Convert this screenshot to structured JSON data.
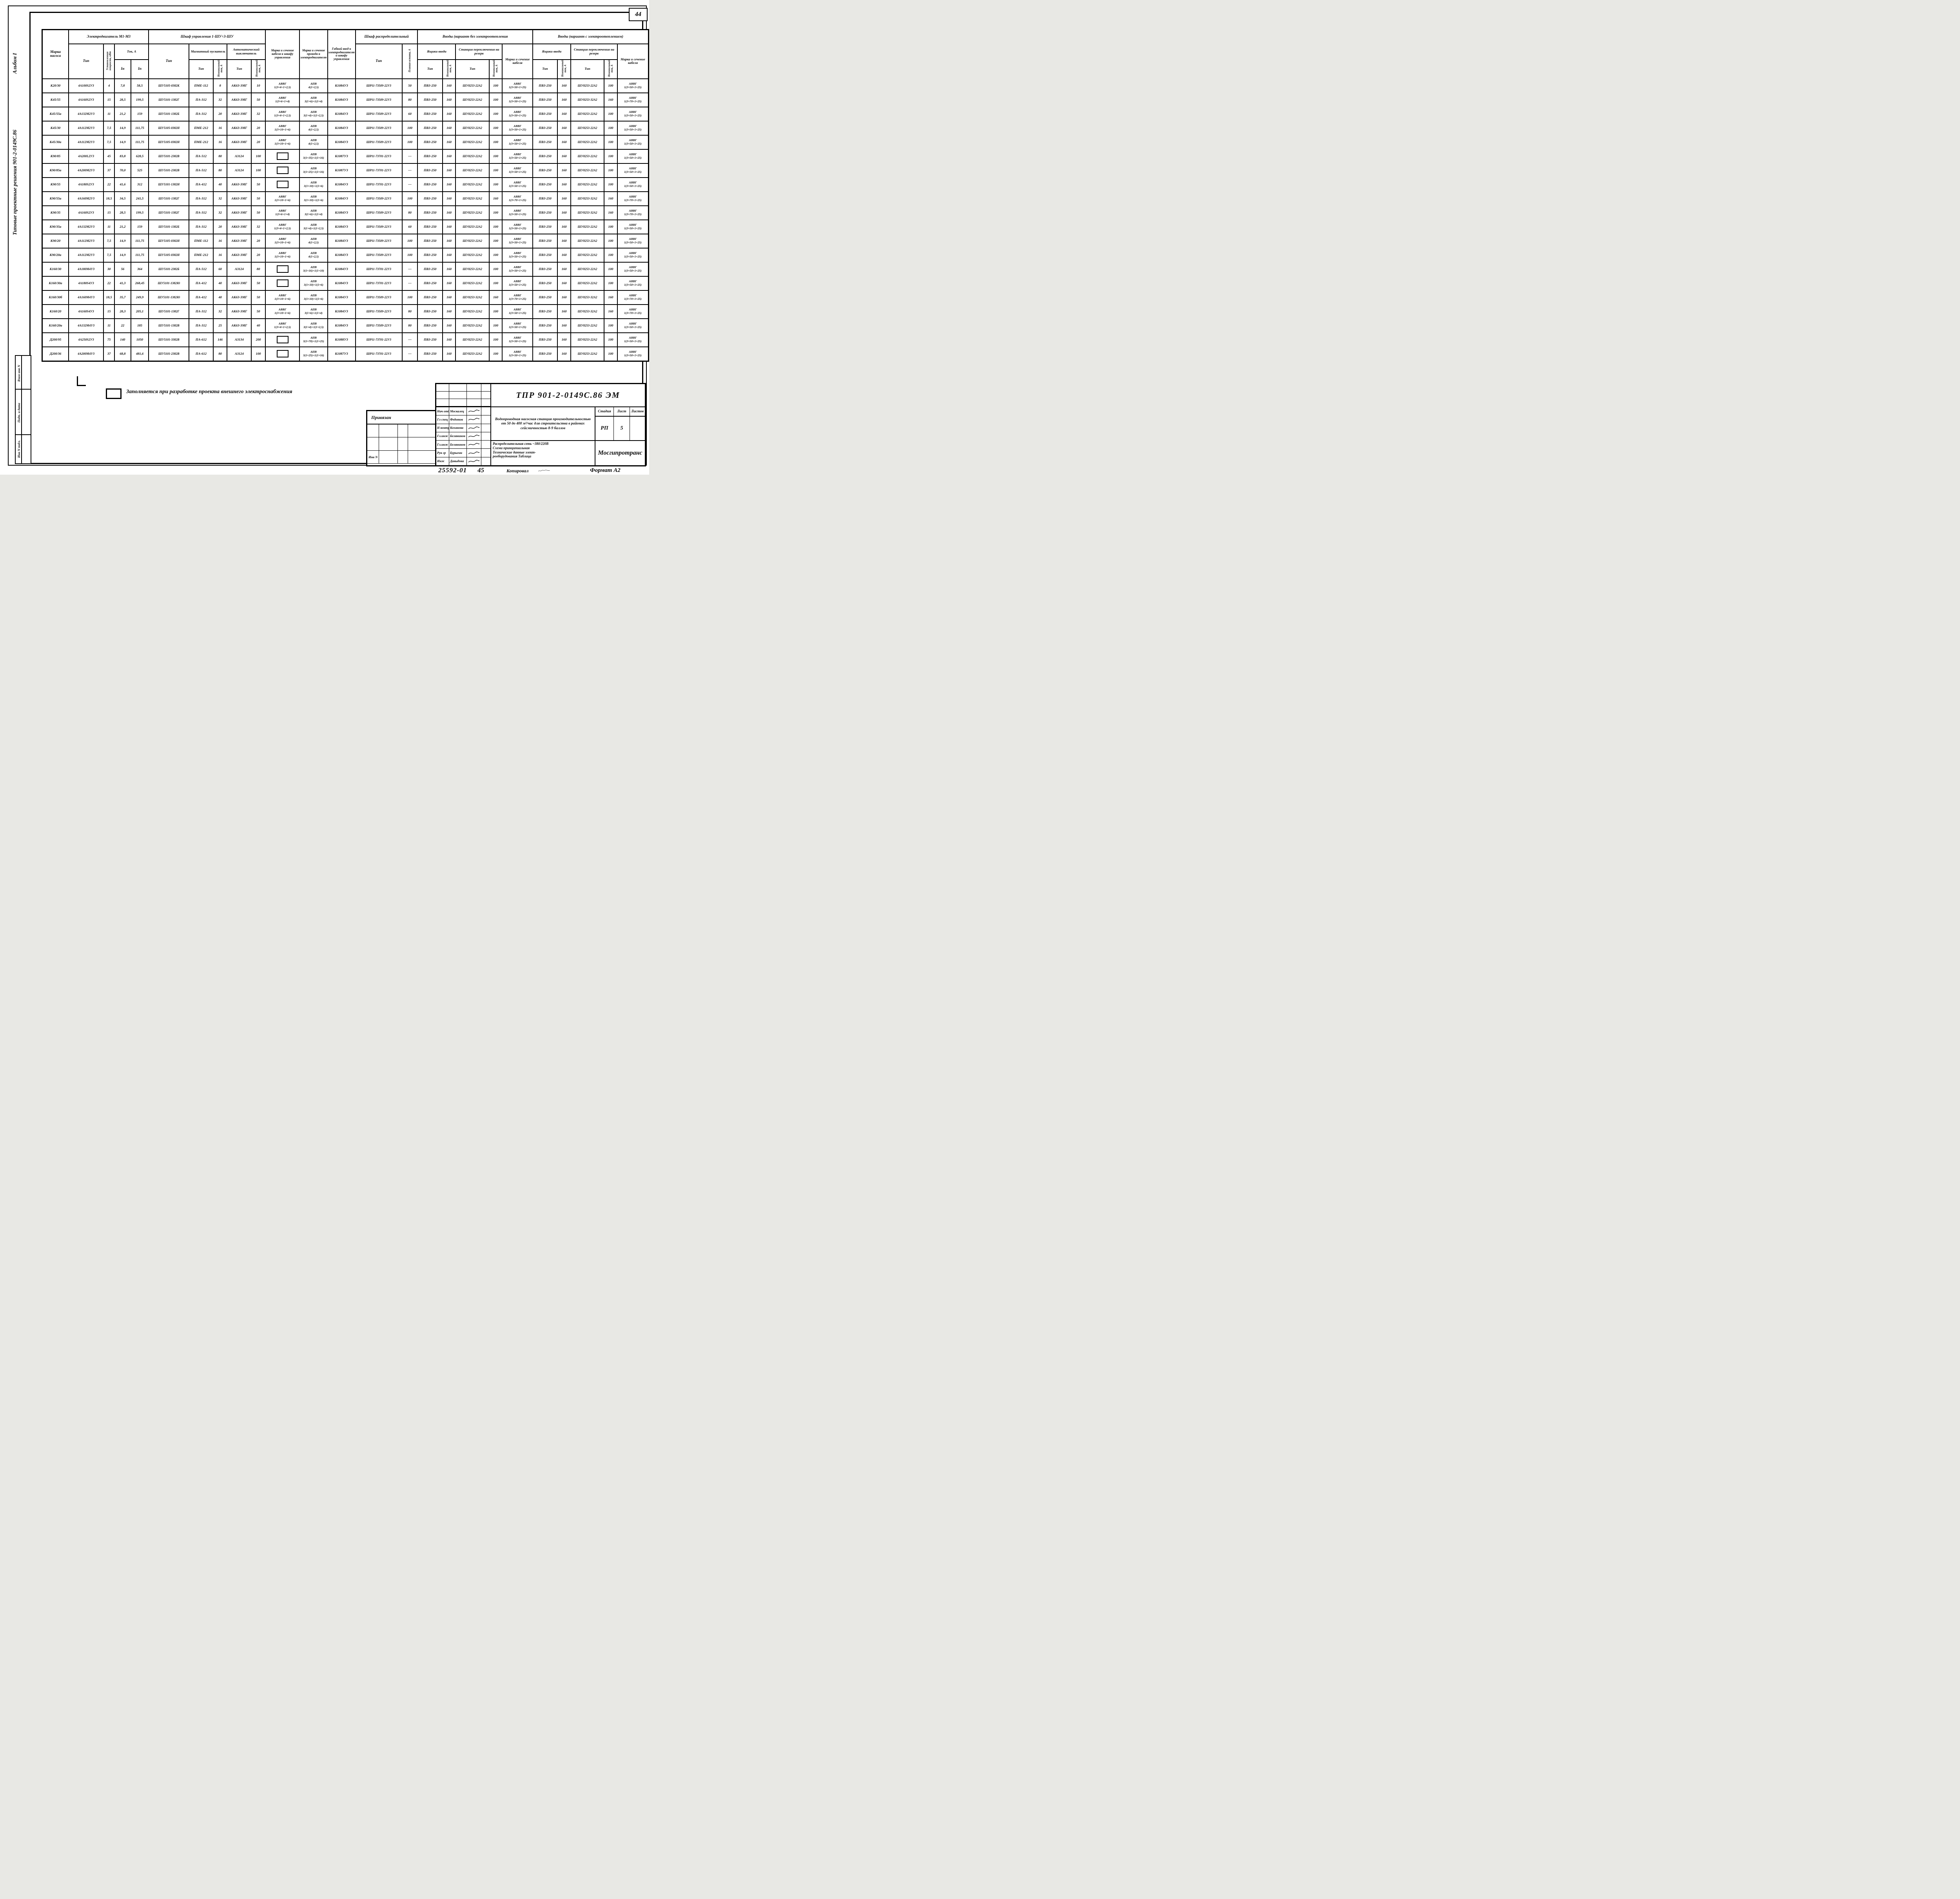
{
  "page": {
    "sheet_number": "44",
    "left_margin": {
      "vertical_title": "Типовые  проектные  решения  901-2-0149С.86",
      "album": "Альбом I",
      "stamp_cells": [
        "Взам инв N",
        "Подп. и дата",
        "Инв N подл."
      ]
    },
    "footer": {
      "order_no": "25592-01",
      "footer_sheet": "45",
      "copied_label": "Копировал",
      "format": "Формат А2"
    }
  },
  "note": {
    "text": "Заполняется при разработке проекта внешнего электроснабжения"
  },
  "table": {
    "header": {
      "pump_mark": "Марка\nнасоса",
      "motor_group": "Электродвигатель  М1-М3",
      "motor_type": "Тип",
      "motor_power": "Установленная мощность, кВт",
      "current_group": "Ток, А",
      "i_nom": "Iн",
      "i_start": "Iп",
      "control_group": "Шкаф  управления   1-ШУ÷3-ШУ",
      "control_type": "Тип",
      "starter_group": "Магнитный пускатель",
      "breaker_group": "Автоматический выключатель",
      "type_label": "Тип",
      "nom_current": "Номинальный ток, А",
      "cable_to_control": "Марка и сечение кабеля к шкафу управления",
      "wire_to_motor": "Марка и сечение провода к электродвигателю",
      "flex_lead": "Гибкий ввод к электродвигателю и шкафу управления",
      "distribution_group": "Шкаф распределительный",
      "distribution_type": "Тип",
      "fuse": "Плавкая вставка, А",
      "inputs_no_heating": "Вводы (вариант без электроотопления",
      "inputs_heating": "Вводы (вариант с электроотоплением)",
      "input_boxes": "Ящики ввода",
      "switch_station": "Станция переключения на резерв",
      "cable_mark": "Марка и сечение кабеля"
    },
    "rows": [
      [
        "К20/30",
        "4А100S2У3",
        "4",
        "7,8",
        "58,5",
        "ШУ5105-0382К",
        "ПМЕ-112",
        "8",
        "АК63-3МГ",
        "10",
        "АВВГ\n1(3×4+1×2,5)",
        "АПВ\n4(1×2,5)",
        "К1084У3",
        "ШР11-73509-22У3",
        "50",
        "ПВ3-250",
        "160",
        "ШУ8253-22А2",
        "100",
        "АВВГ\n1(3×50+1×25)",
        "ПВ3-250",
        "160",
        "ШУ8253-22А2",
        "100",
        "АВВГ\n1(3×50+1×25)"
      ],
      [
        "К45/55",
        "4А160S2У3",
        "15",
        "28,5",
        "199,5",
        "ШУ5101-1382Г",
        "ПА-312",
        "32",
        "АК63-3МГ",
        "50",
        "АВВГ\n1(3×6+1×4)",
        "АПВ\n3(1×6)+1(1×4)",
        "К1084У3",
        "ШР11-73509-22У3",
        "80",
        "ПВ3-250",
        "160",
        "ШУ8253-22А2",
        "100",
        "АВВГ\n1(3×50+1×25)",
        "ПВ3-250",
        "160",
        "ШУ8253-32А2",
        "160",
        "АВВГ\n1(3×70+1×25)"
      ],
      [
        "К45/55а",
        "4А132М2У3",
        "11",
        "21,2",
        "159",
        "ШУ5101-1382Б",
        "ПА-312",
        "20",
        "АК63-3МГ",
        "32",
        "АВВГ\n1(3×4+1×2,5)",
        "АПВ\n3(1×4)+1(1×2,5)",
        "К1084У3",
        "ШР11-73509-22У3",
        "60",
        "ПВ3-250",
        "160",
        "ШУ8253-22А2",
        "100",
        "АВВГ\n1(3×50+1×25)",
        "ПВ3-250",
        "160",
        "ШУ8253-22А2",
        "100",
        "АВВГ\n1(3×50+1×25)"
      ],
      [
        "К45/30",
        "4А112М2У3",
        "7,5",
        "14,9",
        "111,75",
        "ШУ5105-0382Н",
        "ПМЕ-212",
        "16",
        "АК63-3МГ",
        "20",
        "АВВГ\n1(3×10+1×6)",
        "АПВ\n4(1×2,5)",
        "К1084У3",
        "ШР11-73509-22У3",
        "100",
        "ПВ3-250",
        "160",
        "ШУ8253-22А2",
        "100",
        "АВВГ\n1(3×50+1×25)",
        "ПВ3-250",
        "160",
        "ШУ8253-22А2",
        "100",
        "АВВГ\n1(3×50+1×25)"
      ],
      [
        "К45/30а",
        "4А112М2У3",
        "7,5",
        "14,9",
        "111,75",
        "ШУ5105-0382Н",
        "ПМЕ-212",
        "16",
        "АК63-3МГ",
        "20",
        "АВВГ\n1(3×10+1×6)",
        "АПВ\n4(1×2,5)",
        "К1084У3",
        "ШР11-73509-22У3",
        "100",
        "ПВ3-250",
        "160",
        "ШУ8253-22А2",
        "100",
        "АВВГ\n1(3×50+1×25)",
        "ПВ3-250",
        "160",
        "ШУ8253-22А2",
        "100",
        "АВВГ\n1(3×50+1×25)"
      ],
      [
        "К90/85",
        "4А200L2У3",
        "45",
        "83,8",
        "628,5",
        "ШУ5101-2382В",
        "ПА-512",
        "80",
        "А3124",
        "100",
        "▭",
        "АПВ\n3(1×35)+1(1×16)",
        "К1087У3",
        "ШР11-73701-22У3",
        "—",
        "ПВ3-250",
        "160",
        "ШУ8253-22А2",
        "100",
        "АВВГ\n1(3×50+1×25)",
        "ПВ3-250",
        "160",
        "ШУ8253-22А2",
        "100",
        "АВВГ\n1(3×50+1×25)"
      ],
      [
        "К90/85а",
        "4А200М2У3",
        "37",
        "70,0",
        "525",
        "ШУ5101-2382В",
        "ПА-512",
        "80",
        "А3124",
        "100",
        "▭",
        "АПВ\n3(1×25)+1(1×16)",
        "К1087У3",
        "ШР11-73701-22У3",
        "—",
        "ПВ3-250",
        "160",
        "ШУ8253-22А2",
        "100",
        "АВВГ\n1(3×50+1×25)",
        "ПВ3-250",
        "160",
        "ШУ8253-22А2",
        "100",
        "АВВГ\n1(3×50+1×25)"
      ],
      [
        "К90/55",
        "4А180S2У3",
        "22",
        "41,6",
        "312",
        "ШУ5101-1382Н",
        "ПА-412",
        "40",
        "АК63-3МГ",
        "50",
        "▭",
        "АПВ\n3(1×10)+1(1×6)",
        "К1084У3",
        "ШР11-73701-22У3",
        "—",
        "ПВ3-250",
        "160",
        "ШУ8253-22А2",
        "100",
        "АВВГ\n1(3×50+1×25)",
        "ПВ3-250",
        "160",
        "ШУ8253-22А2",
        "100",
        "АВВГ\n1(3×50+1×25)"
      ],
      [
        "К90/55а",
        "4А160М2У3",
        "18,5",
        "34,5",
        "241,5",
        "ШУ5101-1382Г",
        "ПА-312",
        "32",
        "АК63-3МГ",
        "50",
        "АВВГ\n1(3×10+1×6)",
        "АПВ\n3(1×10)+1(1×6)",
        "К1084У3",
        "ШР11-73509-22У3",
        "100",
        "ПВ3-250",
        "160",
        "ШУ8253-32А2",
        "160",
        "АВВГ\n1(3×70+1×25)",
        "ПВ3-250",
        "160",
        "ШУ8253-32А2",
        "160",
        "АВВГ\n1(3×70+1×25)"
      ],
      [
        "К90/35",
        "4А160S2У3",
        "15",
        "28,5",
        "199,5",
        "ШУ5101-1382Г",
        "ПА-312",
        "32",
        "АК63-3МГ",
        "50",
        "АВВГ\n1(3×6+1×4)",
        "АПВ\n3(1×6)+1(1×4)",
        "К1084У3",
        "ШР11-73509-22У3",
        "80",
        "ПВ3-250",
        "160",
        "ШУ8253-22А2",
        "100",
        "АВВГ\n1(3×50+1×25)",
        "ПВ3-250",
        "160",
        "ШУ8253-32А2",
        "160",
        "АВВГ\n1(3×70+1×25)"
      ],
      [
        "К90/35а",
        "4А132М2У3",
        "11",
        "21,2",
        "159",
        "ШУ5101-1382Б",
        "ПА-312",
        "20",
        "АК63-3МГ",
        "32",
        "АВВГ\n1(3×4+1×2,5)",
        "АПВ\n3(1×4)+1(1×2,5)",
        "К1084У3",
        "ШР11-73509-22У3",
        "60",
        "ПВ3-250",
        "160",
        "ШУ8253-22А2",
        "100",
        "АВВГ\n1(3×50+1×25)",
        "ПВ3-250",
        "160",
        "ШУ8253-22А2",
        "100",
        "АВВГ\n1(3×50+1×25)"
      ],
      [
        "К90/20",
        "4А112М2У3",
        "7,5",
        "14,9",
        "111,75",
        "ШУ5105-0382Н",
        "ПМЕ-112",
        "16",
        "АК63-3МГ",
        "20",
        "АВВГ\n1(3×10+1×6)",
        "АПВ\n4(1×2,5)",
        "К1084У3",
        "ШР11-73509-22У3",
        "100",
        "ПВ3-250",
        "160",
        "ШУ8253-22А2",
        "100",
        "АВВГ\n1(3×50+1×25)",
        "ПВ3-250",
        "160",
        "ШУ8253-22А2",
        "100",
        "АВВГ\n1(3×50+1×25)"
      ],
      [
        "К90/20а",
        "4А112М2У3",
        "7,5",
        "14,9",
        "111,75",
        "ШУ5105-0382Н",
        "ПМЕ-212",
        "16",
        "АК63-3МГ",
        "20",
        "АВВГ\n1(3×10+1×6)",
        "АПВ\n4(1×2,5)",
        "К1084У3",
        "ШР11-73509-22У3",
        "100",
        "ПВ3-250",
        "160",
        "ШУ8253-22А2",
        "100",
        "АВВГ\n1(3×50+1×25)",
        "ПВ3-250",
        "160",
        "ШУ8253-22А2",
        "100",
        "АВВГ\n1(3×50+1×25)"
      ],
      [
        "К160/30",
        "4А180М4У3",
        "30",
        "56",
        "364",
        "ШУ5101-2382Б",
        "ПА-512",
        "60",
        "А3124",
        "80",
        "▭",
        "АПВ\n3(1×16)+1(1×10)",
        "К1084У3",
        "ШР11-73701-22У3",
        "—",
        "ПВ3-250",
        "160",
        "ШУ8253-22А2",
        "100",
        "АВВГ\n1(3×50+1×25)",
        "ПВ3-250",
        "160",
        "ШУ8253-22А2",
        "100",
        "АВВГ\n1(3×50+1×25)"
      ],
      [
        "К160/30а",
        "4А180S4У3",
        "22",
        "41,3",
        "268,45",
        "ШУ5101-1382Ю",
        "ПА-412",
        "40",
        "АК63-3МГ",
        "50",
        "▭",
        "АПВ\n3(1×10)+1(1×6)",
        "К1084У3",
        "ШР11-73701-22У3",
        "—",
        "ПВ3-250",
        "160",
        "ШУ8253-22А2",
        "100",
        "АВВГ\n1(3×50+1×25)",
        "ПВ3-250",
        "160",
        "ШУ8253-22А2",
        "100",
        "АВВГ\n1(3×50+1×25)"
      ],
      [
        "К160/30б",
        "4А160М4У3",
        "18,5",
        "35,7",
        "249,9",
        "ШУ5101-1382Ю",
        "ПА-412",
        "40",
        "АК63-3МГ",
        "50",
        "АВВГ\n1(3×10+1×6)",
        "АПВ\n3(1×10)+1(1×6)",
        "К1084У3",
        "ШР11-73509-22У3",
        "100",
        "ПВ3-250",
        "160",
        "ШУ8253-32А2",
        "160",
        "АВВГ\n1(3×70+1×25)",
        "ПВ3-250",
        "160",
        "ШУ8253-32А2",
        "160",
        "АВВГ\n1(3×70+1×25)"
      ],
      [
        "К160/20",
        "4А160S4У3",
        "15",
        "28,3",
        "205,1",
        "ШУ5101-1382Г",
        "ПА-312",
        "32",
        "АК63-3МГ",
        "50",
        "АВВГ\n1(3×10+1×6)",
        "АПВ\n3(1×6)+1(1×4)",
        "К1084У3",
        "ШР11-73509-22У3",
        "80",
        "ПВ3-250",
        "160",
        "ШУ8253-22А2",
        "100",
        "АВВГ\n1(3×50+1×25)",
        "ПВ3-250",
        "160",
        "ШУ8253-32А2",
        "160",
        "АВВГ\n1(3×70+1×25)"
      ],
      [
        "К160/20а",
        "4А132М4У3",
        "11",
        "22",
        "185",
        "ШУ5101-1382В",
        "ПА-312",
        "25",
        "АК63-3МГ",
        "40",
        "АВВГ\n1(3×4+1×2,5)",
        "АПВ\n3(1×4)+1(1×2,5)",
        "К1084У3",
        "ШР11-73509-22У3",
        "80",
        "ПВ3-250",
        "160",
        "ШУ8253-22А2",
        "100",
        "АВВГ\n1(3×50+1×25)",
        "ПВ3-250",
        "160",
        "ШУ8253-22А2",
        "100",
        "АВВГ\n1(3×50+1×25)"
      ],
      [
        "Д200/95",
        "4А250S2У3",
        "75",
        "140",
        "1050",
        "ШУ5101-3382В",
        "ПА-612",
        "146",
        "А3134",
        "200",
        "▭",
        "АПВ\n3(1×70)+1(1×25)",
        "К1088У3",
        "ШР11-73701-22У3",
        "—",
        "ПВ3-250",
        "160",
        "ШУ8253-22А2",
        "100",
        "АВВГ\n1(3×50+1×25)",
        "ПВ3-250",
        "160",
        "ШУ8253-22А2",
        "100",
        "АВВГ\n1(3×50+1×25)"
      ],
      [
        "Д200/36",
        "4А200М4У3",
        "37",
        "68,8",
        "481,6",
        "ШУ5101-2382В",
        "ПА-612",
        "80",
        "А3124",
        "100",
        "▭",
        "АПВ\n3(1×25)+1(1×16)",
        "К1087У3",
        "ШР11-73701-22У3",
        "—",
        "ПВ3-250",
        "160",
        "ШУ8253-22А2",
        "100",
        "АВВГ\n1(3×50+1×25)",
        "ПВ3-250",
        "160",
        "ШУ8253-22А2",
        "100",
        "АВВГ\n1(3×50+1×25)"
      ]
    ]
  },
  "title_block": {
    "doc_code": "ТПР 901-2-0149С.86 ЭМ",
    "people": [
      {
        "role": "Нач отд",
        "name": "Москалец"
      },
      {
        "role": "Гл спец",
        "name": "Федотов"
      },
      {
        "role": "Н контр",
        "name": "Коханова"
      },
      {
        "role": "Гл.инж пр",
        "name": "Белянинов"
      },
      {
        "role": "Гл.инж раз",
        "name": "Белянинов"
      },
      {
        "role": "Рук гр",
        "name": "Бурыгин"
      },
      {
        "role": "Инж",
        "name": "Давыдова"
      }
    ],
    "project_title": "Водопроводная насосная станция производительностью от 50 до 400 м³/час для строительства в районах сейсмичностью 8-9 баллов",
    "drawing_title": "Распределительная сеть ~380/220В\nСхема принципиальная\nТехнические данные элект-\nрооборудования  Таблица",
    "stage_label": "Стадия",
    "sheet_label": "Лист",
    "sheets_label": "Листов",
    "stage": "РП",
    "sheet": "5",
    "sheets": "",
    "organization": "Мосгипротранс",
    "attached_label": "Привязан",
    "inv_label": "Инв N"
  }
}
